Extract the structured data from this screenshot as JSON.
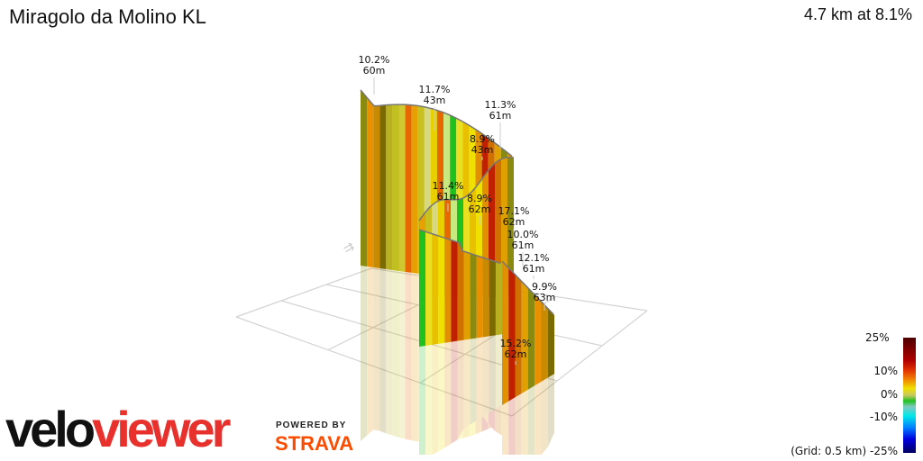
{
  "header": {
    "title": "Miragolo da Molino KL",
    "stats": "4.7 km at 8.1%"
  },
  "labels": [
    {
      "grade": "10.2%",
      "dist": "60m"
    },
    {
      "grade": "11.7%",
      "dist": "43m"
    },
    {
      "grade": "11.3%",
      "dist": "61m"
    },
    {
      "grade": "8.9%",
      "dist": "43m"
    },
    {
      "grade": "11.4%",
      "dist": "61m"
    },
    {
      "grade": "8.9%",
      "dist": "62m"
    },
    {
      "grade": "17.1%",
      "dist": "62m"
    },
    {
      "grade": "10.0%",
      "dist": "61m"
    },
    {
      "grade": "12.1%",
      "dist": "61m"
    },
    {
      "grade": "9.9%",
      "dist": "63m"
    },
    {
      "grade": "15.2%",
      "dist": "62m"
    }
  ],
  "legend": {
    "max": "25%",
    "ten": "10%",
    "zero": "0%",
    "minus_ten": "-10%",
    "min": "(Grid: 0.5 km) -25%"
  },
  "branding": {
    "logo_a": "velo",
    "logo_b": "viewer",
    "powered_by": "POWERED BY",
    "strava": "STRAVA"
  },
  "colors": {
    "viewer_red": "#e8312c",
    "strava_orange": "#fc4c02"
  },
  "segment_colors": [
    "#8a8a10",
    "#e89000",
    "#c88a00",
    "#7a6a00",
    "#b8b020",
    "#c0c020",
    "#d0c830",
    "#e86800",
    "#e8a000",
    "#c8c020",
    "#d8d880",
    "#e8d000",
    "#e86800",
    "#c8e880",
    "#20c020",
    "#e8e020",
    "#e8c000",
    "#f0e000",
    "#e09000",
    "#c02000",
    "#d07000",
    "#e0a000"
  ]
}
